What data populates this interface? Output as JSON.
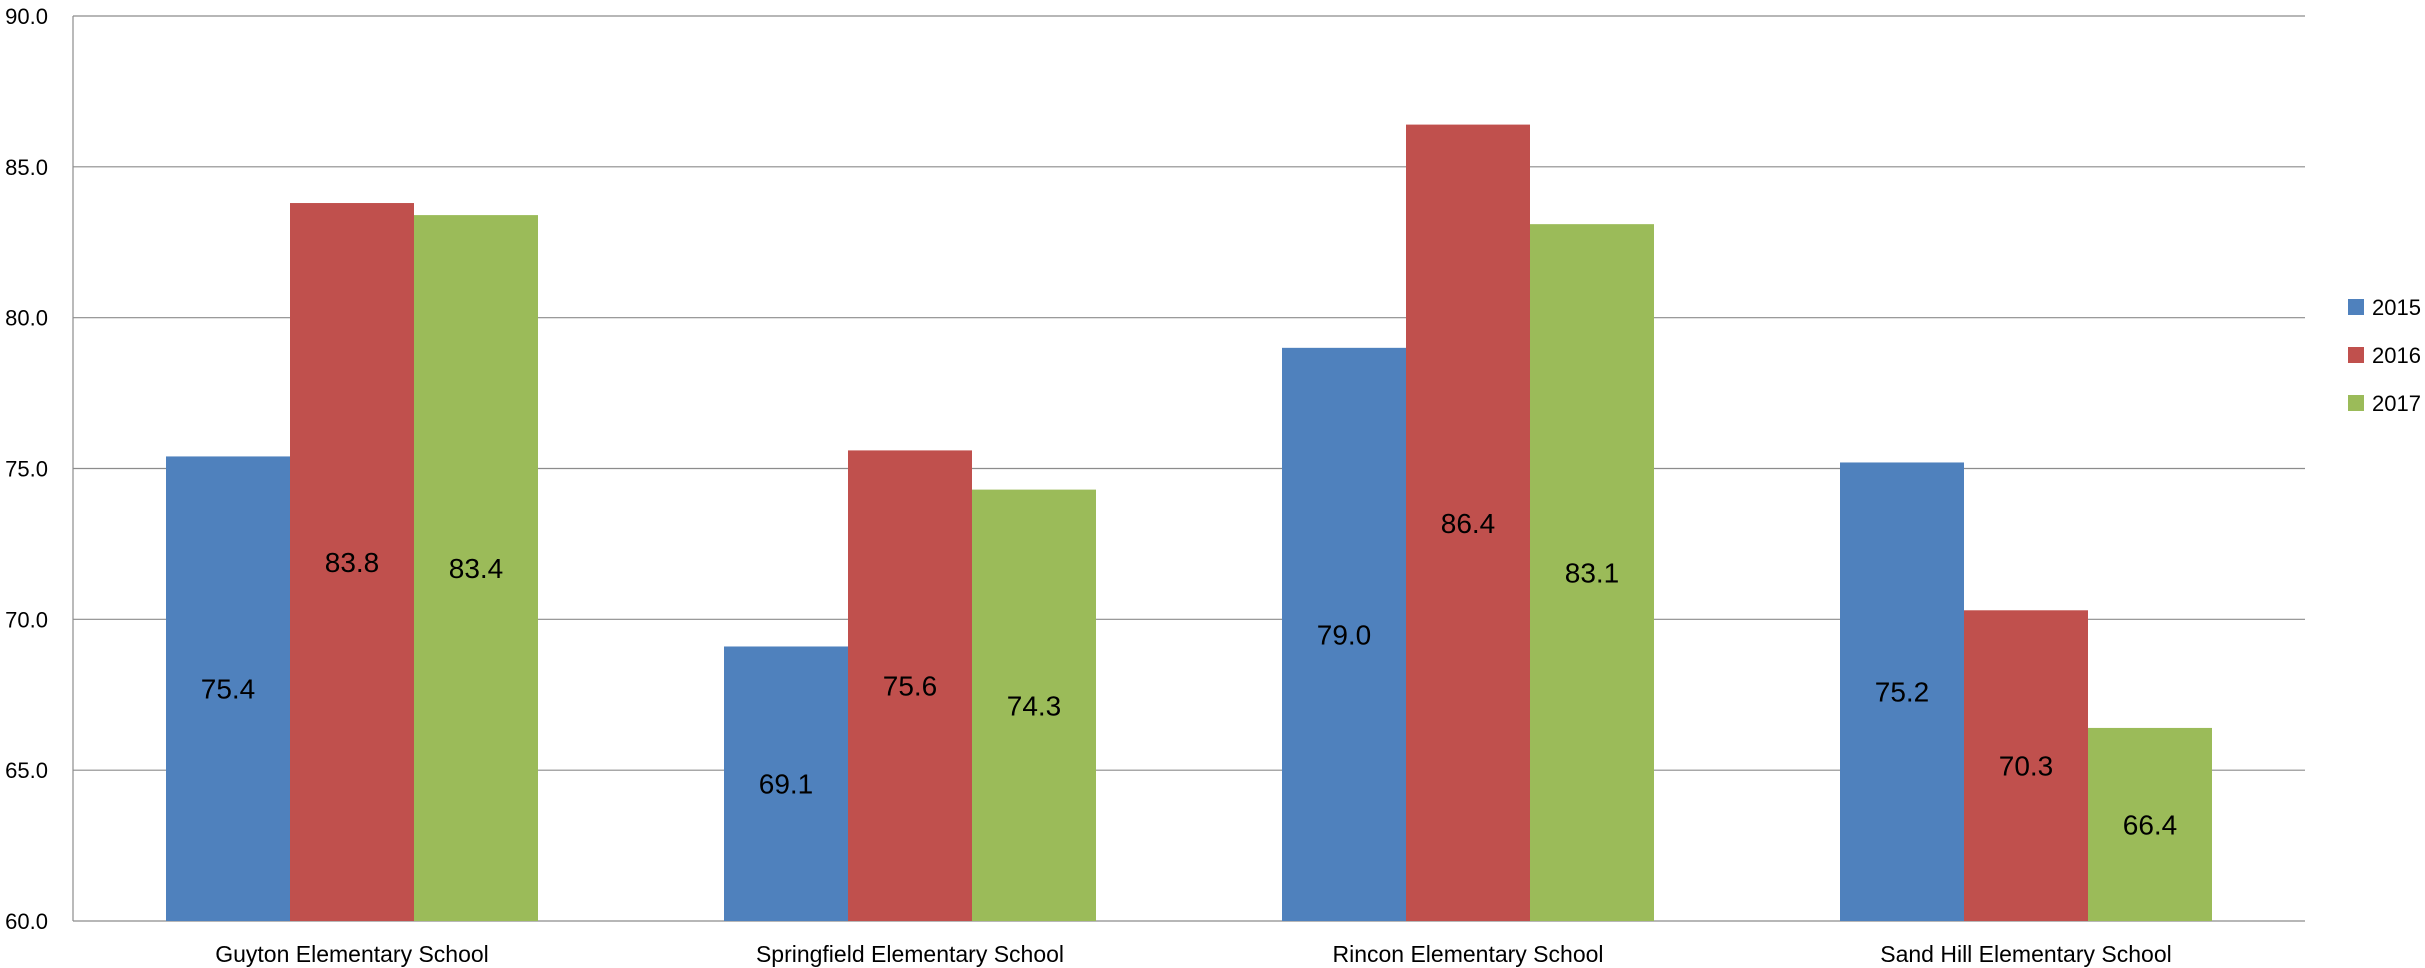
{
  "chart_data": {
    "type": "bar",
    "title": "",
    "xlabel": "",
    "ylabel": "",
    "categories": [
      "Guyton Elementary School",
      "Springfield Elementary School",
      "Rincon Elementary School",
      "Sand Hill Elementary School"
    ],
    "series": [
      {
        "name": "2015",
        "color": "#4F81BD",
        "values": [
          75.4,
          69.1,
          79.0,
          75.2
        ]
      },
      {
        "name": "2016",
        "color": "#C0504D",
        "values": [
          83.8,
          75.6,
          86.4,
          70.3
        ]
      },
      {
        "name": "2017",
        "color": "#9BBB59",
        "values": [
          83.4,
          74.3,
          83.1,
          66.4
        ]
      }
    ],
    "ylim": [
      60,
      90
    ],
    "yticks": [
      "60.0",
      "65.0",
      "70.0",
      "75.0",
      "80.0",
      "85.0",
      "90.0"
    ],
    "grid": true,
    "legend": "right",
    "data_labels": true
  }
}
